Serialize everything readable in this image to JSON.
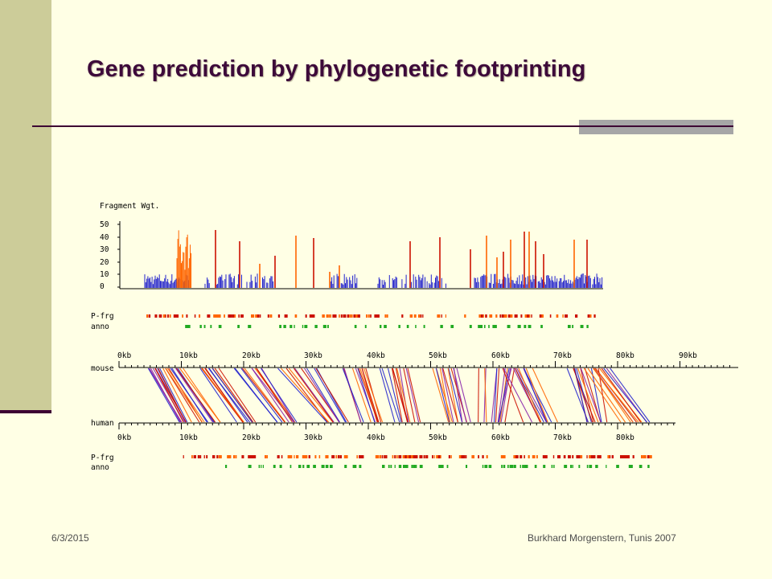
{
  "slide": {
    "title": "Gene prediction by phylogenetic footprinting",
    "footer_date": "6/3/2015",
    "footer_author": "Burkhard Morgenstern, Tunis 2007"
  },
  "figure": {
    "weight_label": "Fragment Wgt.",
    "y_ticks": [
      "50",
      "40",
      "30",
      "20",
      "10",
      "0"
    ],
    "track_pfrg": "P-frg",
    "track_anno": "anno",
    "seq_mouse": "mouse",
    "seq_human": "human",
    "mouse_ticks": [
      "0kb",
      "10kb",
      "20kb",
      "30kb",
      "40kb",
      "50kb",
      "60kb",
      "70kb",
      "80kb",
      "90kb"
    ],
    "human_ticks": [
      "0kb",
      "10kb",
      "20kb",
      "30kb",
      "40kb",
      "50kb",
      "60kb",
      "70kb",
      "80kb"
    ],
    "colors": {
      "blue": "#2222cc",
      "orange": "#ff6600",
      "red": "#cc1100",
      "green": "#22aa22",
      "purple": "#8822aa"
    }
  }
}
